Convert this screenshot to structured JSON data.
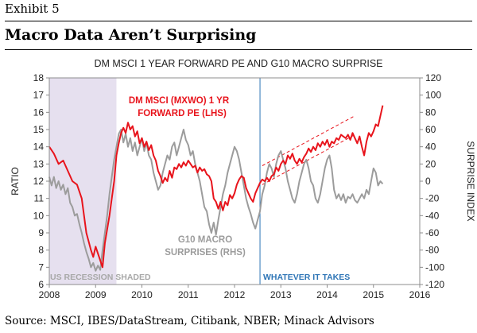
{
  "exhibit_label": "Exhibit 5",
  "headline": "Macro Data Aren’t Surprising",
  "source": "Source: MSCI, IBES/DataStream, Citibank, NBER; Minack Advisors",
  "chart_data": {
    "type": "line",
    "title": "DM MSCI 1 YEAR FORWARD PE AND G10 MACRO SURPRISE",
    "ylabel": "RATIO",
    "y2label": "SURPRISE INDEX",
    "xlim": [
      2008,
      2016
    ],
    "ylim": [
      6,
      18
    ],
    "y2lim": [
      -120,
      120
    ],
    "x_ticks": [
      "2008",
      "2009",
      "2010",
      "2011",
      "2012",
      "2013",
      "2014",
      "2015",
      "2016"
    ],
    "y_ticks": [
      "6",
      "7",
      "8",
      "9",
      "10",
      "11",
      "12",
      "13",
      "14",
      "15",
      "16",
      "17",
      "18"
    ],
    "y2_ticks": [
      "-120",
      "-100",
      "-80",
      "-60",
      "-40",
      "-20",
      "0",
      "20",
      "40",
      "60",
      "80",
      "100",
      "120"
    ],
    "grid": false,
    "colors": {
      "pe": "#e8141c",
      "surprise": "#9c9c9c",
      "recession": "#e6e0ef",
      "vline": "#2e75b6",
      "channel": "#e8141c"
    },
    "recession": {
      "x": [
        2008.0,
        2009.45
      ],
      "label": "US RECESSION SHADED"
    },
    "marker": {
      "x": 2012.55,
      "label": "WHATEVER IT TAKES"
    },
    "annotations": {
      "pe_label": [
        "DM MSCI (MXWO) 1 YR",
        "FORWARD PE (LHS)"
      ],
      "surprise_label": [
        "G10 MACRO",
        "SURPRISES (RHS)"
      ]
    },
    "series": [
      {
        "name": "DM MSCI (MXWO) 1 YR FORWARD PE (LHS)",
        "axis": "left",
        "points": [
          [
            2008.0,
            14.0
          ],
          [
            2008.1,
            13.6
          ],
          [
            2008.2,
            13.0
          ],
          [
            2008.3,
            13.2
          ],
          [
            2008.4,
            12.6
          ],
          [
            2008.5,
            12.0
          ],
          [
            2008.6,
            11.8
          ],
          [
            2008.7,
            11.0
          ],
          [
            2008.75,
            10.0
          ],
          [
            2008.8,
            9.0
          ],
          [
            2008.85,
            8.5
          ],
          [
            2008.9,
            8.0
          ],
          [
            2008.95,
            7.6
          ],
          [
            2009.0,
            8.2
          ],
          [
            2009.05,
            7.8
          ],
          [
            2009.1,
            7.4
          ],
          [
            2009.15,
            7.0
          ],
          [
            2009.2,
            8.4
          ],
          [
            2009.3,
            10.0
          ],
          [
            2009.35,
            11.0
          ],
          [
            2009.4,
            12.0
          ],
          [
            2009.45,
            13.5
          ],
          [
            2009.5,
            14.2
          ],
          [
            2009.55,
            14.8
          ],
          [
            2009.6,
            15.1
          ],
          [
            2009.65,
            14.8
          ],
          [
            2009.7,
            15.4
          ],
          [
            2009.75,
            15.0
          ],
          [
            2009.8,
            15.2
          ],
          [
            2009.85,
            14.6
          ],
          [
            2009.9,
            14.9
          ],
          [
            2009.95,
            14.2
          ],
          [
            2010.0,
            14.5
          ],
          [
            2010.05,
            14.0
          ],
          [
            2010.1,
            14.3
          ],
          [
            2010.15,
            13.8
          ],
          [
            2010.2,
            14.1
          ],
          [
            2010.25,
            13.5
          ],
          [
            2010.3,
            13.2
          ],
          [
            2010.35,
            12.6
          ],
          [
            2010.4,
            12.3
          ],
          [
            2010.45,
            11.9
          ],
          [
            2010.5,
            12.2
          ],
          [
            2010.55,
            12.0
          ],
          [
            2010.6,
            12.6
          ],
          [
            2010.65,
            12.2
          ],
          [
            2010.7,
            12.8
          ],
          [
            2010.75,
            12.7
          ],
          [
            2010.8,
            13.0
          ],
          [
            2010.85,
            12.8
          ],
          [
            2010.9,
            13.1
          ],
          [
            2010.95,
            12.9
          ],
          [
            2011.0,
            13.2
          ],
          [
            2011.05,
            13.0
          ],
          [
            2011.1,
            12.8
          ],
          [
            2011.15,
            12.9
          ],
          [
            2011.2,
            12.5
          ],
          [
            2011.25,
            12.8
          ],
          [
            2011.3,
            12.6
          ],
          [
            2011.35,
            12.7
          ],
          [
            2011.4,
            12.4
          ],
          [
            2011.45,
            12.3
          ],
          [
            2011.5,
            12.0
          ],
          [
            2011.55,
            11.0
          ],
          [
            2011.6,
            10.8
          ],
          [
            2011.65,
            10.4
          ],
          [
            2011.7,
            10.8
          ],
          [
            2011.75,
            10.3
          ],
          [
            2011.8,
            10.8
          ],
          [
            2011.85,
            10.6
          ],
          [
            2011.9,
            11.2
          ],
          [
            2011.95,
            11.0
          ],
          [
            2012.0,
            11.3
          ],
          [
            2012.05,
            11.8
          ],
          [
            2012.1,
            12.1
          ],
          [
            2012.15,
            12.3
          ],
          [
            2012.2,
            12.2
          ],
          [
            2012.25,
            11.6
          ],
          [
            2012.3,
            11.3
          ],
          [
            2012.35,
            11.0
          ],
          [
            2012.4,
            10.8
          ],
          [
            2012.45,
            11.3
          ],
          [
            2012.5,
            11.6
          ],
          [
            2012.55,
            11.9
          ],
          [
            2012.6,
            12.1
          ],
          [
            2012.65,
            12.0
          ],
          [
            2012.7,
            12.2
          ],
          [
            2012.75,
            12.0
          ],
          [
            2012.8,
            12.3
          ],
          [
            2012.85,
            12.4
          ],
          [
            2012.9,
            12.8
          ],
          [
            2012.95,
            12.6
          ],
          [
            2013.0,
            13.0
          ],
          [
            2013.05,
            13.2
          ],
          [
            2013.1,
            13.0
          ],
          [
            2013.15,
            13.5
          ],
          [
            2013.2,
            13.3
          ],
          [
            2013.25,
            13.6
          ],
          [
            2013.3,
            13.2
          ],
          [
            2013.35,
            13.0
          ],
          [
            2013.4,
            13.3
          ],
          [
            2013.45,
            13.1
          ],
          [
            2013.5,
            13.4
          ],
          [
            2013.55,
            13.6
          ],
          [
            2013.6,
            13.9
          ],
          [
            2013.65,
            13.7
          ],
          [
            2013.7,
            14.0
          ],
          [
            2013.75,
            13.8
          ],
          [
            2013.8,
            14.2
          ],
          [
            2013.85,
            14.0
          ],
          [
            2013.9,
            14.3
          ],
          [
            2013.95,
            14.1
          ],
          [
            2014.0,
            14.4
          ],
          [
            2014.05,
            14.0
          ],
          [
            2014.1,
            14.3
          ],
          [
            2014.15,
            14.2
          ],
          [
            2014.2,
            14.5
          ],
          [
            2014.25,
            14.4
          ],
          [
            2014.3,
            14.7
          ],
          [
            2014.35,
            14.6
          ],
          [
            2014.4,
            14.5
          ],
          [
            2014.45,
            14.7
          ],
          [
            2014.5,
            14.4
          ],
          [
            2014.55,
            14.8
          ],
          [
            2014.6,
            14.5
          ],
          [
            2014.65,
            14.2
          ],
          [
            2014.7,
            14.6
          ],
          [
            2014.75,
            14.0
          ],
          [
            2014.8,
            13.5
          ],
          [
            2014.85,
            14.3
          ],
          [
            2014.9,
            14.8
          ],
          [
            2014.95,
            14.6
          ],
          [
            2015.0,
            14.9
          ],
          [
            2015.05,
            15.3
          ],
          [
            2015.1,
            15.2
          ],
          [
            2015.15,
            15.8
          ],
          [
            2015.2,
            16.4
          ]
        ]
      },
      {
        "name": "G10 MACRO SURPRISES (RHS)",
        "axis": "right",
        "points": [
          [
            2008.0,
            5
          ],
          [
            2008.05,
            -5
          ],
          [
            2008.1,
            5
          ],
          [
            2008.15,
            -8
          ],
          [
            2008.2,
            0
          ],
          [
            2008.25,
            -10
          ],
          [
            2008.3,
            -4
          ],
          [
            2008.35,
            -15
          ],
          [
            2008.4,
            -8
          ],
          [
            2008.45,
            -25
          ],
          [
            2008.5,
            -30
          ],
          [
            2008.55,
            -40
          ],
          [
            2008.6,
            -38
          ],
          [
            2008.65,
            -50
          ],
          [
            2008.7,
            -60
          ],
          [
            2008.75,
            -72
          ],
          [
            2008.8,
            -82
          ],
          [
            2008.85,
            -90
          ],
          [
            2008.9,
            -100
          ],
          [
            2008.95,
            -95
          ],
          [
            2009.0,
            -104
          ],
          [
            2009.05,
            -98
          ],
          [
            2009.1,
            -103
          ],
          [
            2009.15,
            -80
          ],
          [
            2009.2,
            -60
          ],
          [
            2009.25,
            -40
          ],
          [
            2009.3,
            -15
          ],
          [
            2009.35,
            5
          ],
          [
            2009.4,
            25
          ],
          [
            2009.45,
            40
          ],
          [
            2009.5,
            55
          ],
          [
            2009.55,
            60
          ],
          [
            2009.6,
            45
          ],
          [
            2009.65,
            55
          ],
          [
            2009.7,
            40
          ],
          [
            2009.75,
            50
          ],
          [
            2009.8,
            35
          ],
          [
            2009.85,
            45
          ],
          [
            2009.9,
            30
          ],
          [
            2009.95,
            40
          ],
          [
            2010.0,
            50
          ],
          [
            2010.05,
            35
          ],
          [
            2010.1,
            45
          ],
          [
            2010.15,
            30
          ],
          [
            2010.2,
            25
          ],
          [
            2010.25,
            10
          ],
          [
            2010.3,
            0
          ],
          [
            2010.35,
            -10
          ],
          [
            2010.4,
            -5
          ],
          [
            2010.45,
            10
          ],
          [
            2010.5,
            20
          ],
          [
            2010.55,
            30
          ],
          [
            2010.6,
            25
          ],
          [
            2010.65,
            40
          ],
          [
            2010.7,
            45
          ],
          [
            2010.75,
            30
          ],
          [
            2010.8,
            40
          ],
          [
            2010.85,
            50
          ],
          [
            2010.9,
            60
          ],
          [
            2010.95,
            48
          ],
          [
            2011.0,
            42
          ],
          [
            2011.05,
            30
          ],
          [
            2011.1,
            35
          ],
          [
            2011.15,
            20
          ],
          [
            2011.2,
            10
          ],
          [
            2011.25,
            0
          ],
          [
            2011.3,
            -15
          ],
          [
            2011.35,
            -30
          ],
          [
            2011.4,
            -35
          ],
          [
            2011.45,
            -50
          ],
          [
            2011.5,
            -60
          ],
          [
            2011.55,
            -48
          ],
          [
            2011.6,
            -62
          ],
          [
            2011.65,
            -45
          ],
          [
            2011.7,
            -30
          ],
          [
            2011.75,
            -15
          ],
          [
            2011.8,
            -5
          ],
          [
            2011.85,
            10
          ],
          [
            2011.9,
            20
          ],
          [
            2011.95,
            30
          ],
          [
            2012.0,
            40
          ],
          [
            2012.05,
            35
          ],
          [
            2012.1,
            25
          ],
          [
            2012.15,
            10
          ],
          [
            2012.2,
            -5
          ],
          [
            2012.25,
            -20
          ],
          [
            2012.3,
            -30
          ],
          [
            2012.35,
            -38
          ],
          [
            2012.4,
            -48
          ],
          [
            2012.45,
            -55
          ],
          [
            2012.5,
            -45
          ],
          [
            2012.55,
            -35
          ],
          [
            2012.6,
            -15
          ],
          [
            2012.65,
            -5
          ],
          [
            2012.7,
            10
          ],
          [
            2012.75,
            20
          ],
          [
            2012.8,
            15
          ],
          [
            2012.85,
            5
          ],
          [
            2012.9,
            20
          ],
          [
            2012.95,
            30
          ],
          [
            2013.0,
            35
          ],
          [
            2013.05,
            25
          ],
          [
            2013.1,
            15
          ],
          [
            2013.15,
            0
          ],
          [
            2013.2,
            -10
          ],
          [
            2013.25,
            -20
          ],
          [
            2013.3,
            -25
          ],
          [
            2013.35,
            -15
          ],
          [
            2013.4,
            0
          ],
          [
            2013.45,
            10
          ],
          [
            2013.5,
            20
          ],
          [
            2013.55,
            25
          ],
          [
            2013.6,
            15
          ],
          [
            2013.65,
            0
          ],
          [
            2013.7,
            -5
          ],
          [
            2013.75,
            -20
          ],
          [
            2013.8,
            -25
          ],
          [
            2013.85,
            -15
          ],
          [
            2013.9,
            0
          ],
          [
            2013.95,
            15
          ],
          [
            2014.0,
            25
          ],
          [
            2014.05,
            30
          ],
          [
            2014.1,
            15
          ],
          [
            2014.15,
            -10
          ],
          [
            2014.2,
            -20
          ],
          [
            2014.25,
            -15
          ],
          [
            2014.3,
            -22
          ],
          [
            2014.35,
            -15
          ],
          [
            2014.4,
            -25
          ],
          [
            2014.45,
            -18
          ],
          [
            2014.5,
            -20
          ],
          [
            2014.55,
            -15
          ],
          [
            2014.6,
            -22
          ],
          [
            2014.65,
            -25
          ],
          [
            2014.7,
            -20
          ],
          [
            2014.75,
            -15
          ],
          [
            2014.8,
            -20
          ],
          [
            2014.85,
            -10
          ],
          [
            2014.9,
            -15
          ],
          [
            2014.95,
            0
          ],
          [
            2015.0,
            15
          ],
          [
            2015.05,
            10
          ],
          [
            2015.1,
            -5
          ],
          [
            2015.15,
            0
          ],
          [
            2015.2,
            -3
          ]
        ]
      }
    ]
  }
}
